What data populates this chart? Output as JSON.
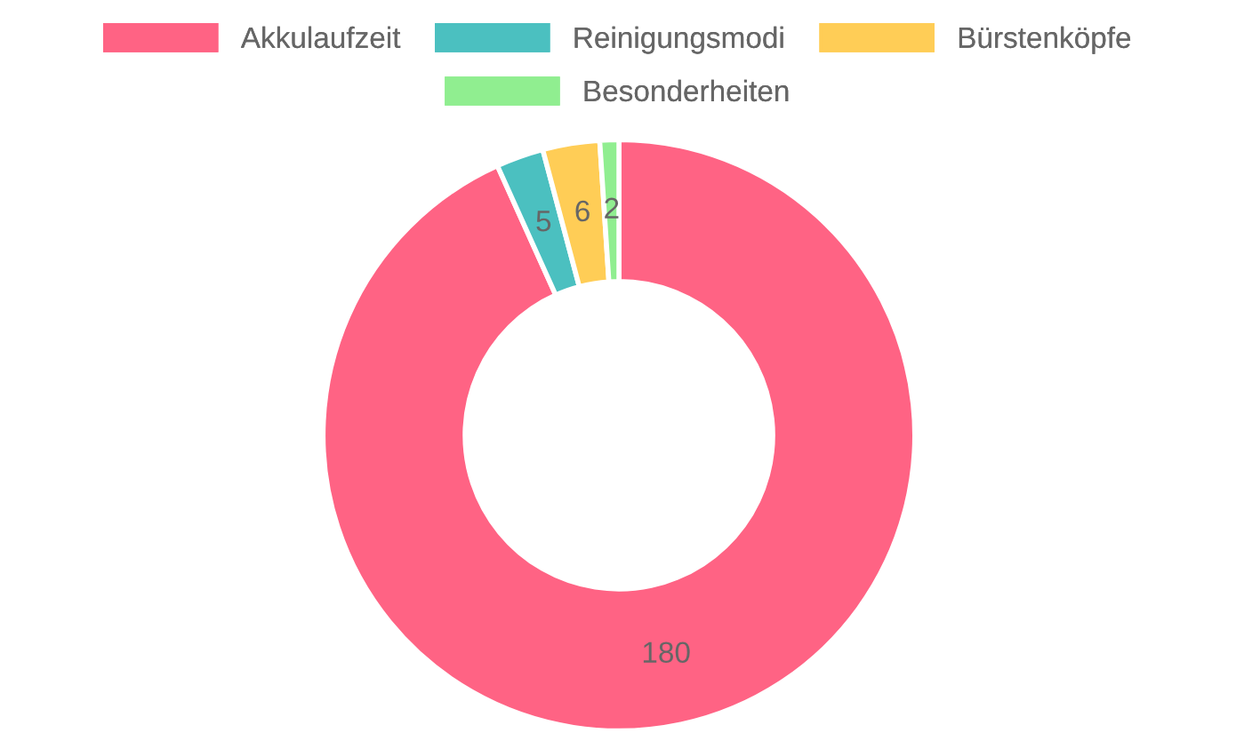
{
  "chart_data": {
    "type": "donut",
    "categories": [
      "Akkulaufzeit",
      "Reinigungsmodi",
      "Bürstenköpfe",
      "Besonderheiten"
    ],
    "values": [
      180,
      5,
      6,
      2
    ],
    "colors": [
      "#ff6384",
      "#4bc0c0",
      "#ffcd56",
      "#90ee90"
    ],
    "data_labels": true,
    "legend": "top"
  }
}
